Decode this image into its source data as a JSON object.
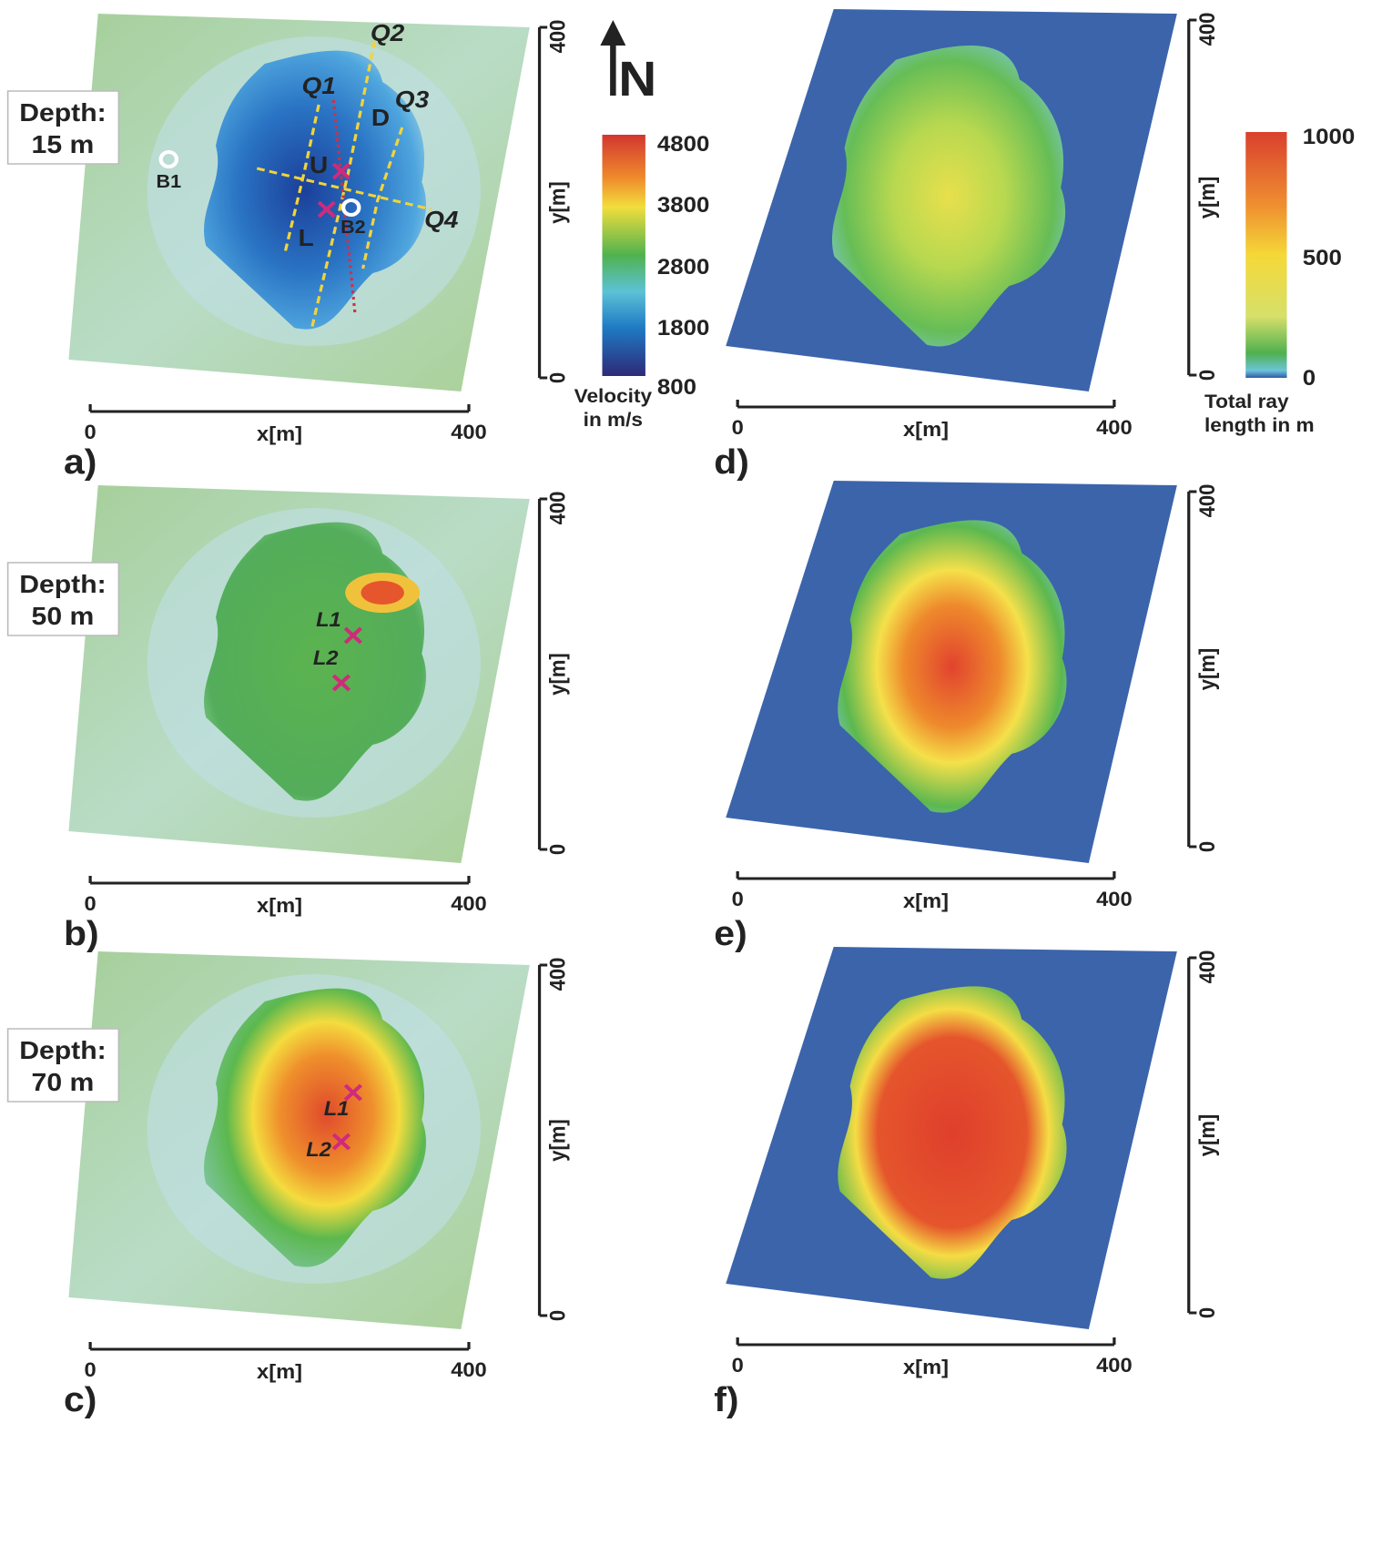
{
  "panels": [
    {
      "label": "a)",
      "depth": [
        "Depth:",
        "15 m"
      ],
      "x_axis": {
        "label": "x[m]",
        "ticks": [
          0,
          400
        ]
      },
      "y_axis": {
        "label": "y[m]",
        "ticks": [
          0,
          400
        ]
      },
      "annotations": [
        "Q1",
        "Q2",
        "Q3",
        "Q4",
        "U",
        "D",
        "L",
        "B1",
        "B2"
      ]
    },
    {
      "label": "b)",
      "depth": [
        "Depth:",
        "50 m"
      ],
      "x_axis": {
        "label": "x[m]",
        "ticks": [
          0,
          400
        ]
      },
      "y_axis": {
        "label": "y[m]",
        "ticks": [
          0,
          400
        ]
      },
      "annotations": [
        "L1",
        "L2"
      ]
    },
    {
      "label": "c)",
      "depth": [
        "Depth:",
        "70 m"
      ],
      "x_axis": {
        "label": "x[m]",
        "ticks": [
          0,
          400
        ]
      },
      "y_axis": {
        "label": "y[m]",
        "ticks": [
          0,
          400
        ]
      },
      "annotations": [
        "L1",
        "L2"
      ]
    },
    {
      "label": "d)",
      "x_axis": {
        "label": "x[m]",
        "ticks": [
          0,
          400
        ]
      },
      "y_axis": {
        "label": "y[m]",
        "ticks": [
          0,
          400
        ]
      }
    },
    {
      "label": "e)",
      "x_axis": {
        "label": "x[m]",
        "ticks": [
          0,
          400
        ]
      },
      "y_axis": {
        "label": "y[m]",
        "ticks": [
          0,
          400
        ]
      }
    },
    {
      "label": "f)",
      "x_axis": {
        "label": "x[m]",
        "ticks": [
          0,
          400
        ]
      },
      "y_axis": {
        "label": "y[m]",
        "ticks": [
          0,
          400
        ]
      }
    }
  ],
  "north_arrow": "N",
  "velocity_colorbar": {
    "title": [
      "Velocity",
      "in m/s"
    ],
    "ticks": [
      4800,
      3800,
      2800,
      1800,
      800
    ]
  },
  "ray_colorbar": {
    "title": [
      "Total ray",
      "length in m"
    ],
    "ticks": [
      1000,
      500,
      0
    ]
  }
}
